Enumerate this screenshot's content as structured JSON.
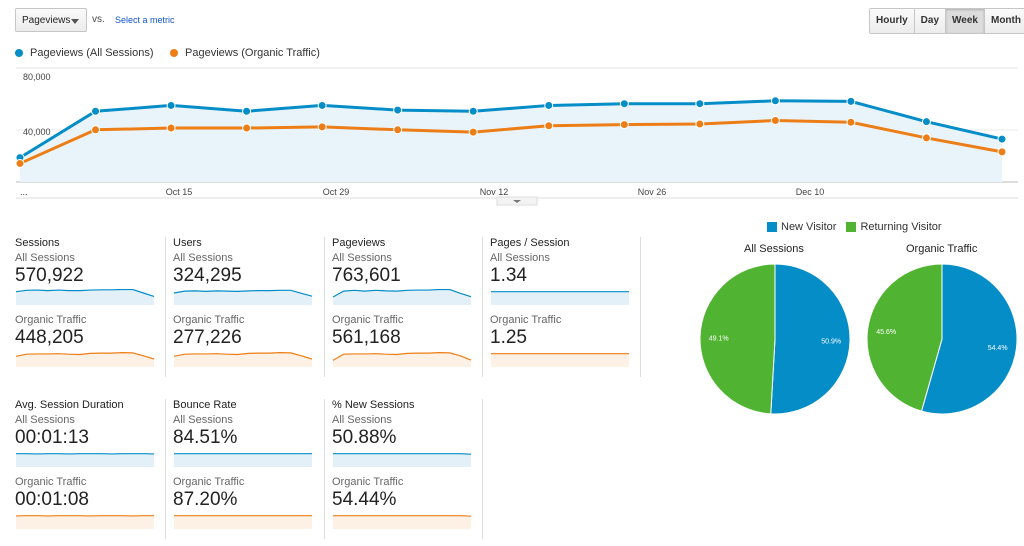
{
  "toolbar": {
    "metric_select": "Pageviews",
    "vs": "vs.",
    "select_metric": "Select a metric",
    "granularity": [
      "Hourly",
      "Day",
      "Week",
      "Month"
    ],
    "active_granularity": "Week"
  },
  "legend": {
    "series1": "Pageviews (All Sessions)",
    "series2": "Pageviews (Organic Traffic)"
  },
  "colors": {
    "all": "#058dc7",
    "organic": "#ed7e17",
    "fill": "#e9f4fa",
    "returning": "#50b432"
  },
  "chart_data": {
    "type": "line",
    "y_ticks": [
      "80,000",
      "40,000"
    ],
    "ylim": [
      0,
      100000
    ],
    "x_tick_labels": [
      "...",
      "Oct 15",
      "Oct 29",
      "Nov 12",
      "Nov 26",
      "Dec 10"
    ],
    "series": [
      {
        "name": "Pageviews (All Sessions)",
        "values": [
          21000,
          61000,
          66000,
          61000,
          66000,
          62000,
          61000,
          66000,
          67500,
          67500,
          70000,
          69500,
          52000,
          37000
        ]
      },
      {
        "name": "Pageviews (Organic Traffic)",
        "values": [
          16000,
          45000,
          46500,
          46500,
          47500,
          45000,
          43000,
          48500,
          49500,
          50000,
          53000,
          51500,
          38000,
          26000
        ]
      }
    ]
  },
  "metrics": [
    {
      "title": "Sessions",
      "all_label": "All Sessions",
      "all_value": "570,922",
      "org_label": "Organic Traffic",
      "org_value": "448,205",
      "spark_all": [
        5,
        5.5,
        5.6,
        5.4,
        5.6,
        5.4,
        5.4,
        5.6,
        5.7,
        5.7,
        5.8,
        5.8,
        4.5,
        3.2
      ],
      "spark_org": [
        4,
        4.8,
        4.9,
        4.9,
        5,
        4.8,
        4.7,
        5.1,
        5.2,
        5.2,
        5.4,
        5.3,
        4.2,
        3
      ]
    },
    {
      "title": "Users",
      "all_label": "All Sessions",
      "all_value": "324,295",
      "org_label": "Organic Traffic",
      "org_value": "277,226",
      "spark_all": [
        4.5,
        5.2,
        5.3,
        5.1,
        5.3,
        5.2,
        5.1,
        5.3,
        5.4,
        5.4,
        5.5,
        5.5,
        4.4,
        3.3
      ],
      "spark_org": [
        4,
        4.8,
        4.9,
        4.9,
        5,
        4.8,
        4.7,
        5.1,
        5.2,
        5.2,
        5.4,
        5.3,
        4.2,
        3
      ]
    },
    {
      "title": "Pageviews",
      "all_label": "All Sessions",
      "all_value": "763,601",
      "org_label": "Organic Traffic",
      "org_value": "561,168",
      "spark_all": [
        3,
        5.2,
        5.5,
        5.2,
        5.5,
        5.3,
        5.2,
        5.5,
        5.6,
        5.6,
        5.8,
        5.8,
        4.4,
        3.1
      ],
      "spark_org": [
        2.5,
        4.8,
        4.9,
        4.9,
        5,
        4.8,
        4.7,
        5.1,
        5.2,
        5.2,
        5.4,
        5.3,
        4.2,
        2.6
      ]
    },
    {
      "title": "Pages / Session",
      "all_label": "All Sessions",
      "all_value": "1.34",
      "org_label": "Organic Traffic",
      "org_value": "1.25",
      "spark_all": [
        5,
        5,
        5,
        5,
        5,
        5,
        5,
        5,
        5,
        5,
        5,
        5,
        5,
        5
      ],
      "spark_org": [
        5,
        5,
        5,
        5,
        5,
        5,
        5,
        5,
        5,
        5,
        5,
        5,
        5,
        5
      ]
    },
    {
      "title": "Avg. Session Duration",
      "all_label": "All Sessions",
      "all_value": "00:01:13",
      "org_label": "Organic Traffic",
      "org_value": "00:01:08",
      "spark_all": [
        5,
        5,
        4.9,
        5,
        5,
        4.9,
        5,
        5,
        5,
        4.9,
        5,
        5,
        5,
        4.9
      ],
      "spark_org": [
        4.9,
        5,
        5,
        4.9,
        5,
        5,
        5,
        4.9,
        5,
        5,
        5,
        4.9,
        5,
        5
      ]
    },
    {
      "title": "Bounce Rate",
      "all_label": "All Sessions",
      "all_value": "84.51%",
      "org_label": "Organic Traffic",
      "org_value": "87.20%",
      "spark_all": [
        5,
        5,
        5,
        5,
        5,
        5,
        5,
        5,
        5,
        5,
        5,
        5,
        5,
        5
      ],
      "spark_org": [
        5,
        5,
        5,
        5,
        5,
        5,
        5,
        5,
        5,
        5,
        5,
        5,
        5,
        5
      ]
    },
    {
      "title": "% New Sessions",
      "all_label": "All Sessions",
      "all_value": "50.88%",
      "org_label": "Organic Traffic",
      "org_value": "54.44%",
      "spark_all": [
        5,
        5,
        5,
        5,
        5,
        5,
        5,
        5,
        5,
        5,
        5,
        5,
        5,
        4.8
      ],
      "spark_org": [
        5,
        5,
        5,
        5,
        5,
        5,
        5,
        5,
        5,
        5,
        5,
        5,
        5,
        4.8
      ]
    }
  ],
  "pie_legend": {
    "new": "New Visitor",
    "returning": "Returning Visitor"
  },
  "pies": [
    {
      "title": "All Sessions",
      "new_pct": 50.9,
      "new_label": "50.9%",
      "ret_label": "49.1%"
    },
    {
      "title": "Organic Traffic",
      "new_pct": 54.4,
      "new_label": "54.4%",
      "ret_label": "45.6%"
    }
  ]
}
